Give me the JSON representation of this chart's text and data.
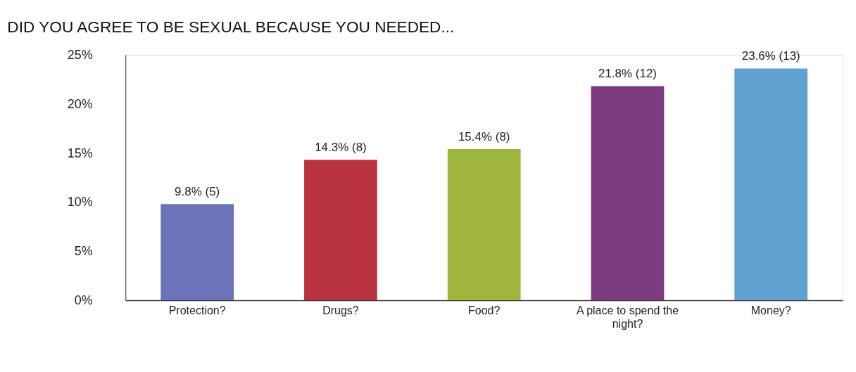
{
  "chart_data": {
    "type": "bar",
    "title": "DID YOU AGREE TO BE SEXUAL  BECAUSE YOU NEEDED...",
    "categories": [
      "Protection?",
      "Drugs?",
      "Food?",
      "A place to spend the night?",
      "Money?"
    ],
    "values": [
      9.8,
      14.3,
      15.4,
      21.8,
      23.6
    ],
    "colors": [
      "#6a72b8",
      "#b8333f",
      "#9db53c",
      "#7d3a80",
      "#5fa2d2"
    ],
    "value_labels": [
      "9.8% (5)",
      "14.3% (8)",
      "15.4% (8)",
      "21.8% (12)",
      "23.6% (13)"
    ],
    "ylim": [
      0,
      25
    ],
    "yticks": [
      {
        "value": 0,
        "label": "0%"
      },
      {
        "value": 5,
        "label": "5%"
      },
      {
        "value": 10,
        "label": "10%"
      },
      {
        "value": 15,
        "label": "15%"
      },
      {
        "value": 20,
        "label": "20%"
      },
      {
        "value": 25,
        "label": "25%"
      }
    ],
    "grid": false
  }
}
